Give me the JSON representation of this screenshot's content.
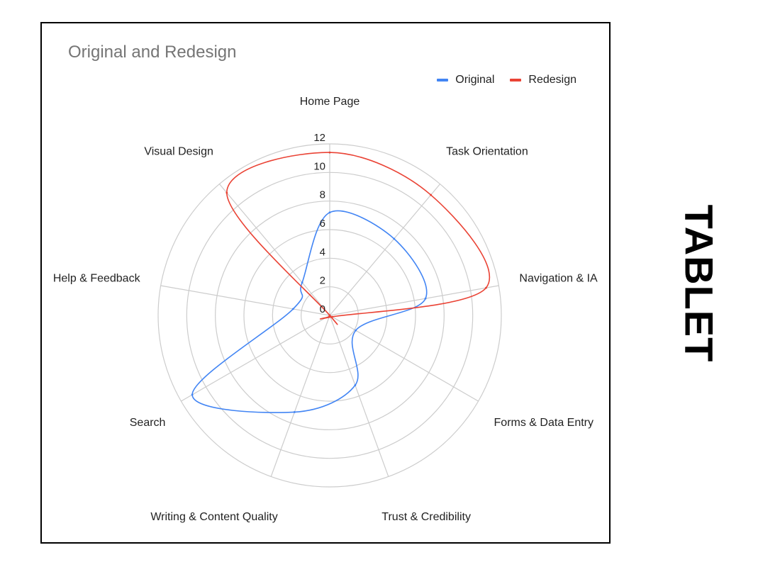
{
  "side_label": "TABLET",
  "chart_data": {
    "type": "radar",
    "title": "Original and Redesign",
    "categories": [
      "Home Page",
      "Task Orientation",
      "Navigation & IA",
      "Forms & Data Entry",
      "Trust & Credibility",
      "Writing & Content Quality",
      "Search",
      "Help & Feedback",
      "Visual Design"
    ],
    "series": [
      {
        "name": "Original",
        "color": "#4285F4",
        "values": [
          7.2,
          7.0,
          6.8,
          2.1,
          5.2,
          7.2,
          11.1,
          2.6,
          3.0
        ]
      },
      {
        "name": "Redesign",
        "color": "#EA4335",
        "values": [
          11.4,
          11.0,
          11.1,
          0.2,
          0.1,
          0.1,
          0.0,
          0.0,
          11.2
        ]
      }
    ],
    "r_ticks": [
      0,
      2,
      4,
      6,
      8,
      10,
      12
    ],
    "r_range": [
      0,
      12
    ],
    "legend_position": "top-right",
    "grid": true
  }
}
